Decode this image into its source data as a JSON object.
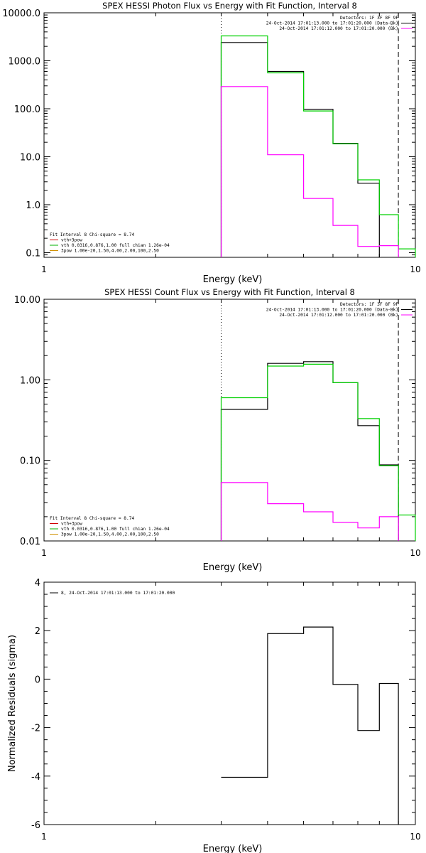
{
  "chart_data": [
    {
      "type": "line",
      "title": "SPEX HESSI Photon Flux vs Energy with Fit Function, Interval 8",
      "xlabel": "Energy (keV)",
      "ylabel": "",
      "xscale": "log",
      "yscale": "log",
      "xlim": [
        1,
        10
      ],
      "ylim": [
        0.08,
        10000
      ],
      "yticks": [
        "10000.0",
        "1000.0",
        "100.0",
        "10.0",
        "1.0",
        "0.1"
      ],
      "yticks_values": [
        10000,
        1000,
        100,
        10,
        1,
        0.1
      ],
      "xticks": [
        "1",
        "10"
      ],
      "xticks_values": [
        1,
        10
      ],
      "legend_top_right": [
        "Detectors: 1F 3F 8F 9F",
        "24-Oct-2014 17:01:13.000 to 17:01:20.000 (Data-Bk)",
        "24-Oct-2014 17:01:12.000 to 17:01:20.000 (Bk)"
      ],
      "legend_bottom_left": [
        "Fit Interval 8   Chi-square = 8.74",
        "vth+3pow",
        "vth 0.0316,0.876,1.00  full chian 1.26e-04",
        "3pow 1.00e-20,1.50,4.00,2.00,100,2.50"
      ],
      "legend_bottom_colors": [
        "#000000",
        "#d00000",
        "#00b000",
        "#d09000"
      ],
      "legend_top_colors": [
        "#000000",
        "#000000",
        "#ff00ff"
      ],
      "vlines": [
        {
          "x": 3,
          "style": "dotted"
        },
        {
          "x": 9,
          "style": "dashed"
        }
      ],
      "edges": [
        3,
        4,
        5,
        6,
        7,
        8,
        9,
        10
      ],
      "series": [
        {
          "color": "#000000",
          "values": [
            2400,
            600,
            97,
            19,
            2.8,
            null,
            null
          ]
        },
        {
          "color": "#00d000",
          "values": [
            3300,
            560,
            90,
            18.5,
            3.3,
            0.62,
            0.12
          ]
        },
        {
          "color": "#ff00ff",
          "values": [
            290,
            11,
            1.35,
            0.37,
            0.135,
            0.14,
            null
          ]
        }
      ]
    },
    {
      "type": "line",
      "title": "SPEX HESSI Count Flux vs Energy with Fit Function, Interval 8",
      "xlabel": "Energy (keV)",
      "ylabel": "",
      "xscale": "log",
      "yscale": "log",
      "xlim": [
        1,
        10
      ],
      "ylim": [
        0.01,
        10
      ],
      "yticks": [
        "10.00",
        "1.00",
        "0.10",
        "0.01"
      ],
      "yticks_values": [
        10,
        1,
        0.1,
        0.01
      ],
      "xticks": [
        "1",
        "10"
      ],
      "xticks_values": [
        1,
        10
      ],
      "legend_top_right": [
        "Detectors: 1F 3F 8F 9F",
        "24-Oct-2014 17:01:13.000 to 17:01:20.000 (Data-Bk)",
        "24-Oct-2014 17:01:12.000 to 17:01:20.000 (Bk)"
      ],
      "legend_bottom_left": [
        "Fit Interval 8   Chi-square = 8.74",
        "vth+3pow",
        "vth 0.0316,0.876,1.00  full chian 1.26e-04",
        "3pow 1.00e-20,1.50,4.00,2.00,100,2.50"
      ],
      "legend_bottom_colors": [
        "#000000",
        "#d00000",
        "#00b000",
        "#d09000"
      ],
      "legend_top_colors": [
        "#000000",
        "#000000",
        "#ff00ff"
      ],
      "vlines": [
        {
          "x": 3,
          "style": "dotted"
        },
        {
          "x": 9,
          "style": "dashed"
        }
      ],
      "edges": [
        3,
        4,
        5,
        6,
        7,
        8,
        9,
        10
      ],
      "series": [
        {
          "color": "#000000",
          "values": [
            0.43,
            1.6,
            1.68,
            0.92,
            0.27,
            0.088,
            null
          ]
        },
        {
          "color": "#00d000",
          "values": [
            0.6,
            1.48,
            1.56,
            0.92,
            0.33,
            0.086,
            0.021
          ]
        },
        {
          "color": "#ff00ff",
          "values": [
            0.053,
            0.029,
            0.023,
            0.017,
            0.0145,
            0.02,
            null
          ]
        }
      ]
    },
    {
      "type": "line",
      "title": "",
      "xlabel": "Energy (keV)",
      "ylabel": "Normalized Residuals (sigma)",
      "xscale": "log",
      "yscale": "linear",
      "xlim": [
        1,
        10
      ],
      "ylim": [
        -6,
        4
      ],
      "yticks": [
        "4",
        "2",
        "0",
        "-2",
        "-4",
        "-6"
      ],
      "yticks_values": [
        4,
        2,
        0,
        -2,
        -4,
        -6
      ],
      "xticks": [
        "1",
        "10"
      ],
      "xticks_values": [
        1,
        10
      ],
      "legend_top_left": [
        "8, 24-Oct-2014 17:01:13.000 to 17:01:20.000"
      ],
      "edges": [
        3,
        4,
        5,
        6,
        7,
        8,
        9
      ],
      "series": [
        {
          "color": "#000000",
          "values": [
            -4.05,
            1.88,
            2.15,
            -0.22,
            -2.12,
            -0.18
          ]
        }
      ]
    }
  ]
}
